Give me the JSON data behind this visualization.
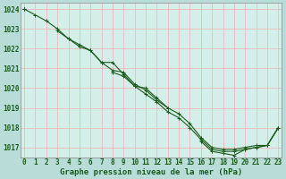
{
  "xlabel": "Graphe pression niveau de la mer (hPa)",
  "bg_color": "#b8ddd8",
  "plot_bg_color": "#d4eeea",
  "grid_color": "#f0b0b0",
  "line_color": "#1a5c1a",
  "x": [
    0,
    1,
    2,
    3,
    4,
    5,
    6,
    7,
    8,
    9,
    10,
    11,
    12,
    13,
    14,
    15,
    16,
    17,
    18,
    19,
    20,
    21,
    22,
    23
  ],
  "series1": [
    1024.0,
    1023.7,
    1023.4,
    1023.0,
    1022.5,
    1022.2,
    1021.9,
    1021.3,
    1021.3,
    1020.7,
    1020.1,
    1020.0,
    1019.5,
    1019.0,
    null,
    null,
    null,
    null,
    null,
    null,
    null,
    null,
    null,
    null
  ],
  "series2": [
    1024.0,
    null,
    null,
    1022.9,
    1022.5,
    1022.1,
    1021.9,
    1021.3,
    1020.9,
    1020.8,
    1020.2,
    1019.9,
    1019.4,
    1019.0,
    1018.7,
    1018.2,
    1017.5,
    1017.0,
    1016.9,
    1016.9,
    1017.0,
    1017.1,
    1017.1,
    1018.0
  ],
  "series3": [
    1024.0,
    null,
    null,
    null,
    null,
    null,
    null,
    null,
    1020.8,
    1020.6,
    1020.1,
    1019.7,
    1019.3,
    1018.8,
    1018.5,
    1018.0,
    1017.4,
    1016.9,
    1016.8,
    1016.8,
    1016.9,
    1017.0,
    1017.1,
    1018.0
  ],
  "series4": [
    1024.0,
    null,
    null,
    null,
    null,
    null,
    null,
    null,
    null,
    null,
    null,
    null,
    null,
    null,
    null,
    null,
    1017.3,
    1016.8,
    1016.7,
    1016.6,
    1016.9,
    1017.0,
    1017.1,
    1018.0
  ],
  "ylim": [
    1016.5,
    1024.3
  ],
  "yticks": [
    1017,
    1018,
    1019,
    1020,
    1021,
    1022,
    1023,
    1024
  ],
  "xticks": [
    0,
    1,
    2,
    3,
    4,
    5,
    6,
    7,
    8,
    9,
    10,
    11,
    12,
    13,
    14,
    15,
    16,
    17,
    18,
    19,
    20,
    21,
    22,
    23
  ],
  "tick_fontsize": 5.5,
  "xlabel_fontsize": 6.5
}
